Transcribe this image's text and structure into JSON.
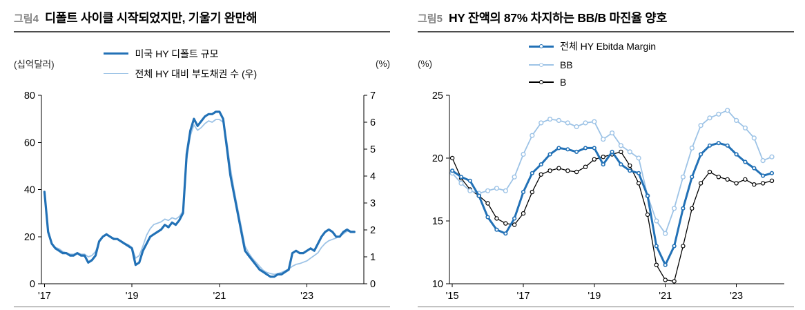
{
  "colors": {
    "primary_blue": "#2271B6",
    "light_blue": "#9DC3E6",
    "series_black": "#000000",
    "fig_label_gray": "#808080",
    "title_underline": "#4d4d4d",
    "bottom_rule": "#737373",
    "background": "#FFFFFF"
  },
  "left_chart": {
    "fig_label": "그림4",
    "title": "디폴트 사이클 시작되었지만, 기울기 완만해",
    "left_axis_unit": "(십억달러)",
    "right_axis_unit": "(%)"
  },
  "right_chart": {
    "fig_label": "그림5",
    "title": "HY 잔액의 87% 차지하는 BB/B 마진율 양호",
    "axis_unit": "(%)"
  },
  "chart_data": [
    {
      "id": "figure4",
      "type": "line",
      "title": "디폴트 사이클 시작되었지만, 기울기 완만해",
      "x_unit": "year",
      "x_start": 2017.0,
      "x_step": 0.083333,
      "xlim": [
        2016.93,
        2024.3
      ],
      "x_ticks": [
        2017,
        2019,
        2021,
        2023
      ],
      "x_tick_labels": [
        "'17",
        "'19",
        "'21",
        "'23"
      ],
      "left_axis_label": "(십억달러)",
      "right_axis_label": "(%)",
      "left_ylim": [
        0,
        80
      ],
      "left_yticks": [
        0,
        20,
        40,
        60,
        80
      ],
      "right_ylim": [
        0,
        7
      ],
      "right_yticks": [
        0,
        1,
        2,
        3,
        4,
        5,
        6,
        7
      ],
      "legend_position": "top",
      "grid": false,
      "series": [
        {
          "name": "미국 HY 디폴트 규모",
          "axis": "left",
          "color": "#2271B6",
          "stroke_width": 3.2,
          "marker": false,
          "values": [
            39,
            22,
            17,
            15,
            14,
            13,
            13,
            12,
            12,
            13,
            12,
            12,
            9,
            10,
            12,
            18,
            20,
            21,
            20,
            19,
            19,
            18,
            17,
            16,
            15,
            8,
            9,
            14,
            17,
            20,
            21,
            22,
            23,
            25,
            24,
            26,
            25,
            27,
            30,
            55,
            65,
            70,
            67,
            69,
            71,
            72,
            72,
            73,
            73,
            70,
            58,
            46,
            38,
            30,
            22,
            14,
            12,
            10,
            8,
            6,
            5,
            4,
            3,
            3,
            4,
            4,
            5,
            6,
            13,
            14,
            13,
            13,
            14,
            15,
            14,
            17,
            20,
            22,
            23,
            22,
            20,
            20,
            22,
            23,
            22,
            22
          ]
        },
        {
          "name": "전체 HY 대비 부도채권 수 (우)",
          "axis": "right",
          "color": "#9DC3E6",
          "stroke_width": 1.8,
          "marker": false,
          "values": [
            3.4,
            2.0,
            1.5,
            1.35,
            1.3,
            1.2,
            1.15,
            1.1,
            1.1,
            1.15,
            1.1,
            1.1,
            1.0,
            1.05,
            1.2,
            1.55,
            1.75,
            1.8,
            1.75,
            1.7,
            1.65,
            1.6,
            1.5,
            1.45,
            1.35,
            0.95,
            1.05,
            1.4,
            1.8,
            2.05,
            2.2,
            2.25,
            2.3,
            2.4,
            2.35,
            2.45,
            2.4,
            2.5,
            2.7,
            4.6,
            5.5,
            5.9,
            5.7,
            5.8,
            5.95,
            6.05,
            6.0,
            6.1,
            6.1,
            6.0,
            5.3,
            4.3,
            3.5,
            2.8,
            2.1,
            1.4,
            1.15,
            0.95,
            0.8,
            0.65,
            0.5,
            0.42,
            0.38,
            0.35,
            0.38,
            0.42,
            0.48,
            0.55,
            0.65,
            0.72,
            0.75,
            0.8,
            0.85,
            0.95,
            1.05,
            1.15,
            1.35,
            1.5,
            1.6,
            1.65,
            1.7,
            1.78,
            1.85,
            1.95,
            1.95,
            1.95
          ]
        }
      ]
    },
    {
      "id": "figure5",
      "type": "line",
      "title": "HY 잔액의 87% 차지하는 BB/B 마진율 양호",
      "x_unit": "year",
      "x_start": 2015.0,
      "x_step": 0.25,
      "xlim": [
        2014.92,
        2024.35
      ],
      "x_ticks": [
        2015,
        2017,
        2019,
        2021,
        2023
      ],
      "x_tick_labels": [
        "'15",
        "'17",
        "'19",
        "'21",
        "'23"
      ],
      "axis_label": "(%)",
      "ylim": [
        10,
        25
      ],
      "yticks": [
        10,
        15,
        20,
        25
      ],
      "legend_position": "top",
      "grid": false,
      "series": [
        {
          "name": "전체 HY Ebitda Margin",
          "color": "#2271B6",
          "stroke_width": 3.0,
          "marker": true,
          "marker_r": 2.3,
          "marker_stroke": 1.6,
          "values": [
            19.0,
            18.5,
            18.2,
            17.0,
            15.3,
            14.3,
            14.0,
            15.2,
            17.3,
            18.8,
            19.5,
            20.3,
            20.8,
            20.7,
            20.5,
            20.8,
            20.8,
            19.5,
            20.5,
            19.5,
            19.0,
            18.8,
            17.0,
            13.0,
            11.5,
            13.0,
            16.0,
            18.5,
            20.3,
            21.0,
            21.2,
            21.0,
            20.3,
            19.7,
            19.2,
            18.6,
            18.8
          ]
        },
        {
          "name": "BB",
          "color": "#9DC3E6",
          "stroke_width": 1.8,
          "marker": true,
          "marker_r": 2.9,
          "marker_stroke": 1.4,
          "values": [
            18.8,
            18.0,
            17.4,
            17.2,
            17.4,
            17.6,
            17.4,
            18.5,
            20.3,
            21.8,
            22.8,
            23.1,
            23.0,
            22.8,
            22.5,
            22.8,
            22.9,
            21.5,
            22.0,
            21.0,
            20.5,
            20.0,
            17.0,
            15.0,
            14.0,
            16.0,
            18.5,
            20.8,
            22.6,
            23.2,
            23.5,
            23.8,
            23.0,
            22.4,
            21.6,
            19.8,
            20.1
          ]
        },
        {
          "name": "B",
          "color": "#000000",
          "stroke_width": 1.3,
          "marker": true,
          "marker_r": 2.6,
          "marker_stroke": 1.2,
          "values": [
            20.0,
            18.4,
            17.5,
            17.0,
            16.4,
            15.2,
            14.8,
            14.7,
            15.6,
            17.3,
            18.7,
            19.0,
            19.2,
            19.0,
            18.9,
            19.3,
            19.9,
            20.1,
            20.3,
            20.5,
            19.4,
            18.0,
            15.5,
            11.5,
            10.3,
            10.2,
            13.0,
            16.0,
            18.0,
            18.9,
            18.5,
            18.3,
            18.0,
            18.3,
            17.9,
            18.0,
            18.2
          ]
        }
      ]
    }
  ]
}
